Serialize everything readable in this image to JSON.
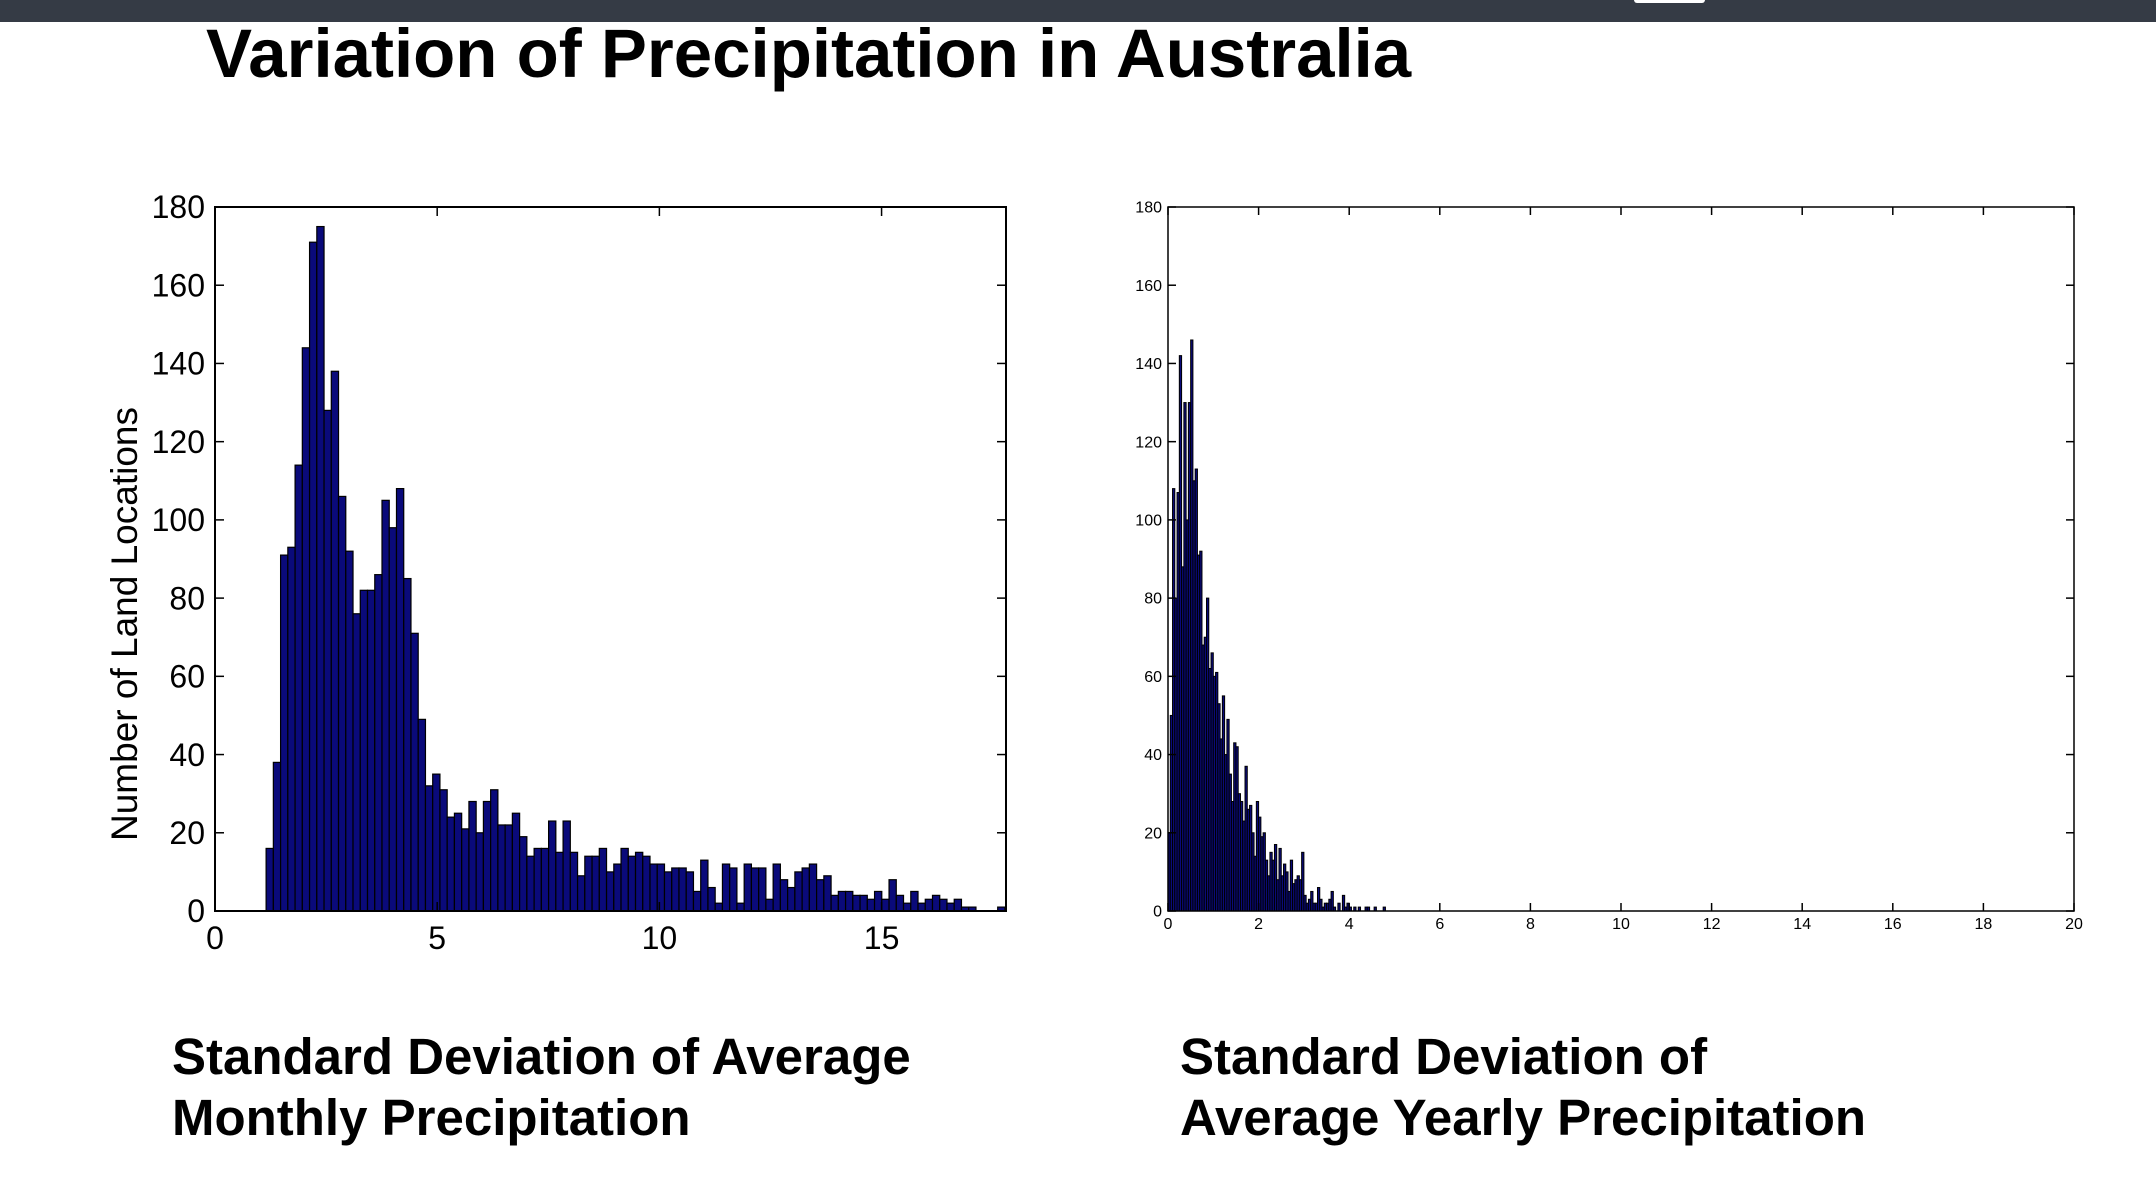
{
  "slide": {
    "title": "Variation of Precipitation in Australia",
    "captions": [
      [
        "Standard Deviation of Average",
        "Monthly Precipitation"
      ],
      [
        "Standard Deviation of",
        "Average Yearly Precipitation"
      ]
    ]
  },
  "colors": {
    "bar_fill": "#0a0a7a",
    "bar_edge": "#000000",
    "topbar": "#353b45"
  },
  "chart_data": [
    {
      "type": "bar",
      "title": "",
      "xlabel": "",
      "ylabel": "Number of Land Locations",
      "xlim": [
        0,
        17.8
      ],
      "ylim": [
        0,
        180
      ],
      "xticks": [
        0,
        5,
        10,
        15
      ],
      "yticks": [
        0,
        20,
        40,
        60,
        80,
        100,
        120,
        140,
        160,
        180
      ],
      "bin_start": 1.15,
      "bin_width": 0.163,
      "values": [
        16,
        38,
        91,
        93,
        114,
        144,
        171,
        175,
        128,
        138,
        106,
        92,
        76,
        82,
        82,
        86,
        105,
        98,
        108,
        85,
        71,
        49,
        32,
        35,
        31,
        24,
        25,
        21,
        28,
        20,
        28,
        31,
        22,
        22,
        25,
        19,
        14,
        16,
        16,
        23,
        15,
        23,
        15,
        9,
        14,
        14,
        16,
        10,
        12,
        16,
        14,
        15,
        14,
        12,
        12,
        10,
        11,
        11,
        10,
        5,
        13,
        6,
        2,
        12,
        11,
        2,
        12,
        11,
        11,
        3,
        12,
        8,
        6,
        10,
        11,
        12,
        8,
        9,
        4,
        5,
        5,
        4,
        4,
        3,
        5,
        3,
        8,
        4,
        2,
        5,
        2,
        3,
        4,
        3,
        2,
        3,
        1,
        1,
        0,
        0,
        0,
        1
      ]
    },
    {
      "type": "bar",
      "title": "",
      "xlabel": "",
      "ylabel": "",
      "xlim": [
        0,
        20
      ],
      "ylim": [
        0,
        180
      ],
      "xticks": [
        0,
        2,
        4,
        6,
        8,
        10,
        12,
        14,
        16,
        18,
        20
      ],
      "yticks": [
        0,
        20,
        40,
        60,
        80,
        100,
        120,
        140,
        160,
        180
      ],
      "bin_start": 0.0,
      "bin_width": 0.05,
      "values": [
        20,
        50,
        108,
        80,
        107,
        142,
        88,
        130,
        100,
        130,
        146,
        110,
        113,
        91,
        92,
        68,
        70,
        80,
        62,
        66,
        60,
        61,
        53,
        44,
        55,
        40,
        49,
        35,
        28,
        43,
        42,
        30,
        28,
        23,
        37,
        26,
        27,
        20,
        14,
        28,
        24,
        19,
        20,
        13,
        9,
        15,
        13,
        17,
        8,
        16,
        9,
        12,
        10,
        5,
        13,
        7,
        8,
        9,
        8,
        15,
        4,
        2,
        3,
        5,
        2,
        2,
        6,
        3,
        1,
        2,
        2,
        3,
        5,
        1,
        0,
        2,
        0,
        4,
        1,
        2,
        1,
        0,
        1,
        0,
        1,
        0,
        0,
        1,
        1,
        0,
        0,
        1,
        0,
        0,
        0,
        1
      ]
    }
  ]
}
